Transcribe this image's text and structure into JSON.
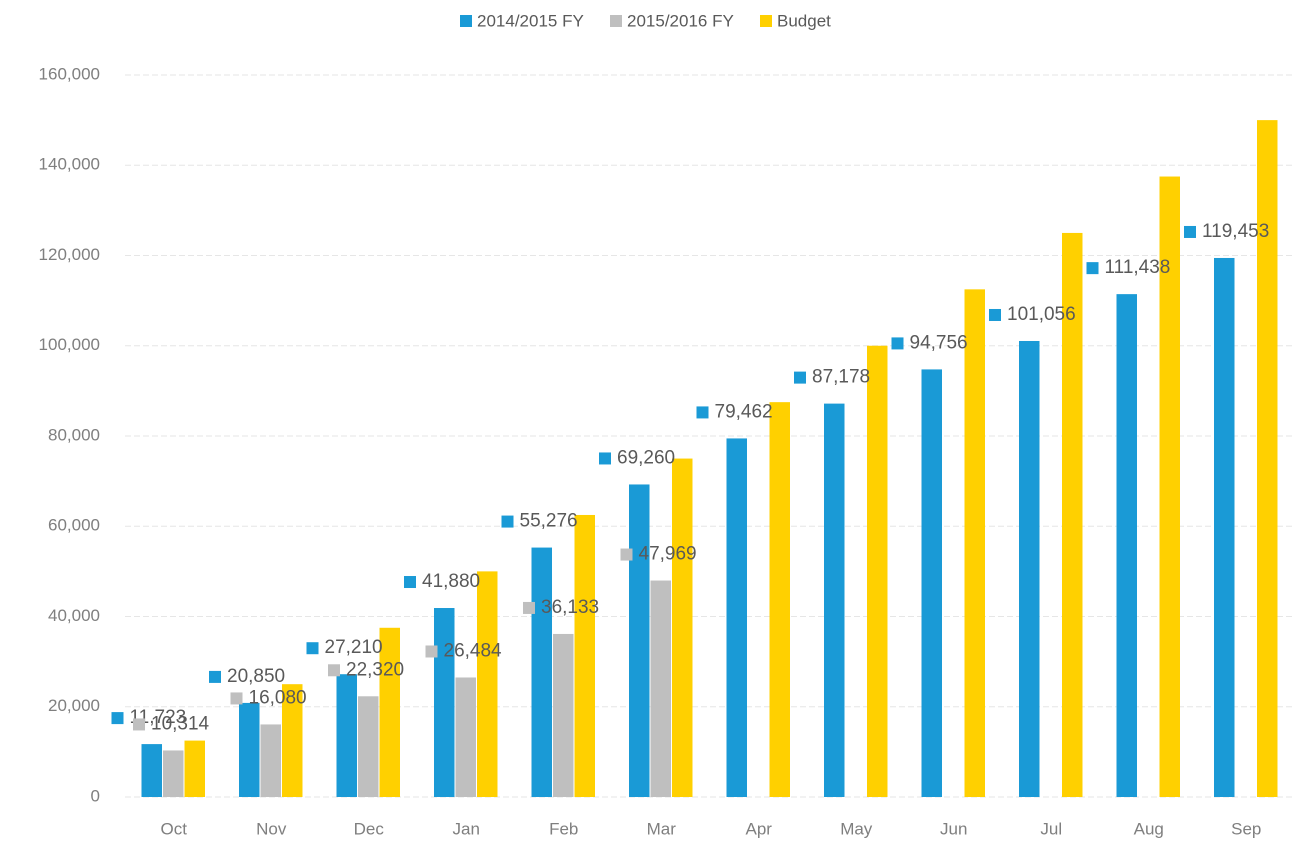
{
  "chart_data": {
    "type": "bar",
    "categories": [
      "Oct",
      "Nov",
      "Dec",
      "Jan",
      "Feb",
      "Mar",
      "Apr",
      "May",
      "Jun",
      "Jul",
      "Aug",
      "Sep"
    ],
    "series": [
      {
        "name": "2014/2015 FY",
        "color": "#1a9ad6",
        "values": [
          11723,
          20850,
          27210,
          41880,
          55276,
          69260,
          79462,
          87178,
          94756,
          101056,
          111438,
          119453
        ],
        "value_labels": [
          "11,723",
          "20,850",
          "27,210",
          "41,880",
          "55,276",
          "69,260",
          "79,462",
          "87,178",
          "94,756",
          "101,056",
          "111,438",
          "119,453"
        ]
      },
      {
        "name": "2015/2016 FY",
        "color": "#bfbfbf",
        "values": [
          10314,
          16080,
          22320,
          26484,
          36133,
          47969,
          null,
          null,
          null,
          null,
          null,
          null
        ],
        "value_labels": [
          "10,314",
          "16,080",
          "22,320",
          "26,484",
          "36,133",
          "47,969",
          null,
          null,
          null,
          null,
          null,
          null
        ]
      },
      {
        "name": "Budget",
        "color": "#ffd000",
        "values": [
          12500,
          25000,
          37500,
          50000,
          62500,
          75000,
          87500,
          100000,
          112500,
          125000,
          137500,
          150000
        ]
      }
    ],
    "ylim": [
      0,
      160000
    ],
    "yticks": [
      0,
      {
        "value": 20000,
        "label": "20,000"
      },
      {
        "value": 40000,
        "label": "40,000"
      },
      {
        "value": 60000,
        "label": "60,000"
      },
      {
        "value": 80000,
        "label": "80,000"
      },
      {
        "value": 100000,
        "label": "100,000"
      },
      {
        "value": 120000,
        "label": "120,000"
      },
      {
        "value": 140000,
        "label": "140,000"
      },
      {
        "value": 160000,
        "label": "160,000"
      }
    ],
    "grid": true,
    "legend": "top"
  }
}
